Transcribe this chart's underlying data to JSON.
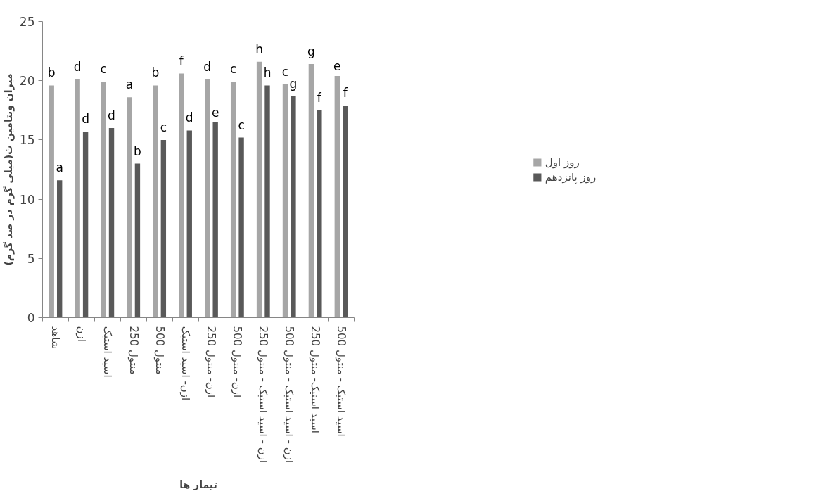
{
  "chart_data": {
    "type": "bar",
    "xlabel": "تیمار ها",
    "ylabel": "میزان ویتامین ث(میلی گرم در صد گرم)",
    "categories": [
      "شاهد",
      "ازن",
      "اسید استیک",
      "منتول 250",
      "منتول 500",
      "ازن- اسید استیک",
      "ازن- منتول 250",
      "ازن- منتول 500",
      "ازن - اسید استیک - منتول 250",
      "ازن - اسید استیک - منتول 500",
      "اسید استیک- منتول 250",
      "اسید استیک - منتول 500"
    ],
    "series": [
      {
        "name": "روز اول",
        "color": "#a6a6a6",
        "values": [
          19.6,
          20.1,
          19.9,
          18.6,
          19.6,
          20.6,
          20.1,
          19.9,
          21.6,
          19.7,
          21.4,
          20.4
        ],
        "value_labels": [
          "b",
          "d",
          "c",
          "a",
          "b",
          "f",
          "d",
          "c",
          "h",
          "c",
          "g",
          "e"
        ]
      },
      {
        "name": "روز پانزدهم",
        "color": "#595959",
        "values": [
          11.6,
          15.7,
          16.0,
          13.0,
          15.0,
          15.8,
          16.5,
          15.2,
          19.6,
          18.7,
          17.5,
          17.9
        ],
        "value_labels": [
          "a",
          "d",
          "d",
          "b",
          "c",
          "d",
          "e",
          "c",
          "h",
          "g",
          "f",
          "f"
        ]
      }
    ],
    "ylim": [
      0,
      25
    ],
    "yticks": [
      0,
      5,
      10,
      15,
      20,
      25
    ],
    "grid": false,
    "legend": "right"
  }
}
